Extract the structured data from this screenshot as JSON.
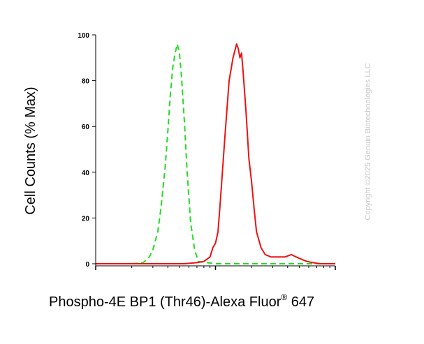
{
  "chart_data": {
    "type": "line",
    "title": "",
    "xlabel": "Phospho-4E BP1 (Thr46)-Alexa Fluor",
    "xlabel_superscript": "®",
    "xlabel_suffix": " 647",
    "ylabel": "Cell Counts (% Max)",
    "x_scale": "log",
    "xlim": [
      0.1,
      10
    ],
    "ylim": [
      0,
      100
    ],
    "yticks": [
      0,
      20,
      40,
      60,
      80,
      100
    ],
    "grid": false,
    "series": [
      {
        "style": "dashed",
        "color": "#22dd22",
        "x": [
          0.1,
          0.2,
          0.25,
          0.28,
          0.3,
          0.33,
          0.35,
          0.38,
          0.4,
          0.42,
          0.44,
          0.46,
          0.48,
          0.5,
          0.52,
          0.55,
          0.58,
          0.62,
          0.67,
          0.72,
          1.0,
          10
        ],
        "y": [
          0,
          0,
          0.5,
          3,
          6,
          14,
          24,
          42,
          58,
          74,
          86,
          92,
          96,
          92,
          82,
          62,
          40,
          18,
          6,
          1,
          0,
          0
        ]
      },
      {
        "style": "solid",
        "color": "#ee1111",
        "x": [
          0.1,
          0.55,
          0.7,
          0.8,
          0.9,
          0.95,
          1.0,
          1.05,
          1.1,
          1.2,
          1.3,
          1.4,
          1.5,
          1.55,
          1.6,
          1.65,
          1.7,
          1.8,
          1.9,
          2.0,
          2.1,
          2.2,
          2.4,
          2.6,
          2.9,
          3.3,
          3.8,
          4.3,
          4.7,
          5.2,
          5.8,
          6.5,
          7.5,
          10
        ],
        "y": [
          0,
          0,
          0.5,
          1,
          3,
          7,
          9,
          14,
          28,
          56,
          80,
          90,
          96,
          94,
          90,
          92,
          84,
          66,
          46,
          36,
          24,
          14,
          7,
          4,
          3,
          3,
          3,
          4,
          3,
          2,
          1,
          0.5,
          0,
          0
        ]
      }
    ]
  },
  "watermark": "Copyright ©2025 Genuin Biotechnologies LLC"
}
